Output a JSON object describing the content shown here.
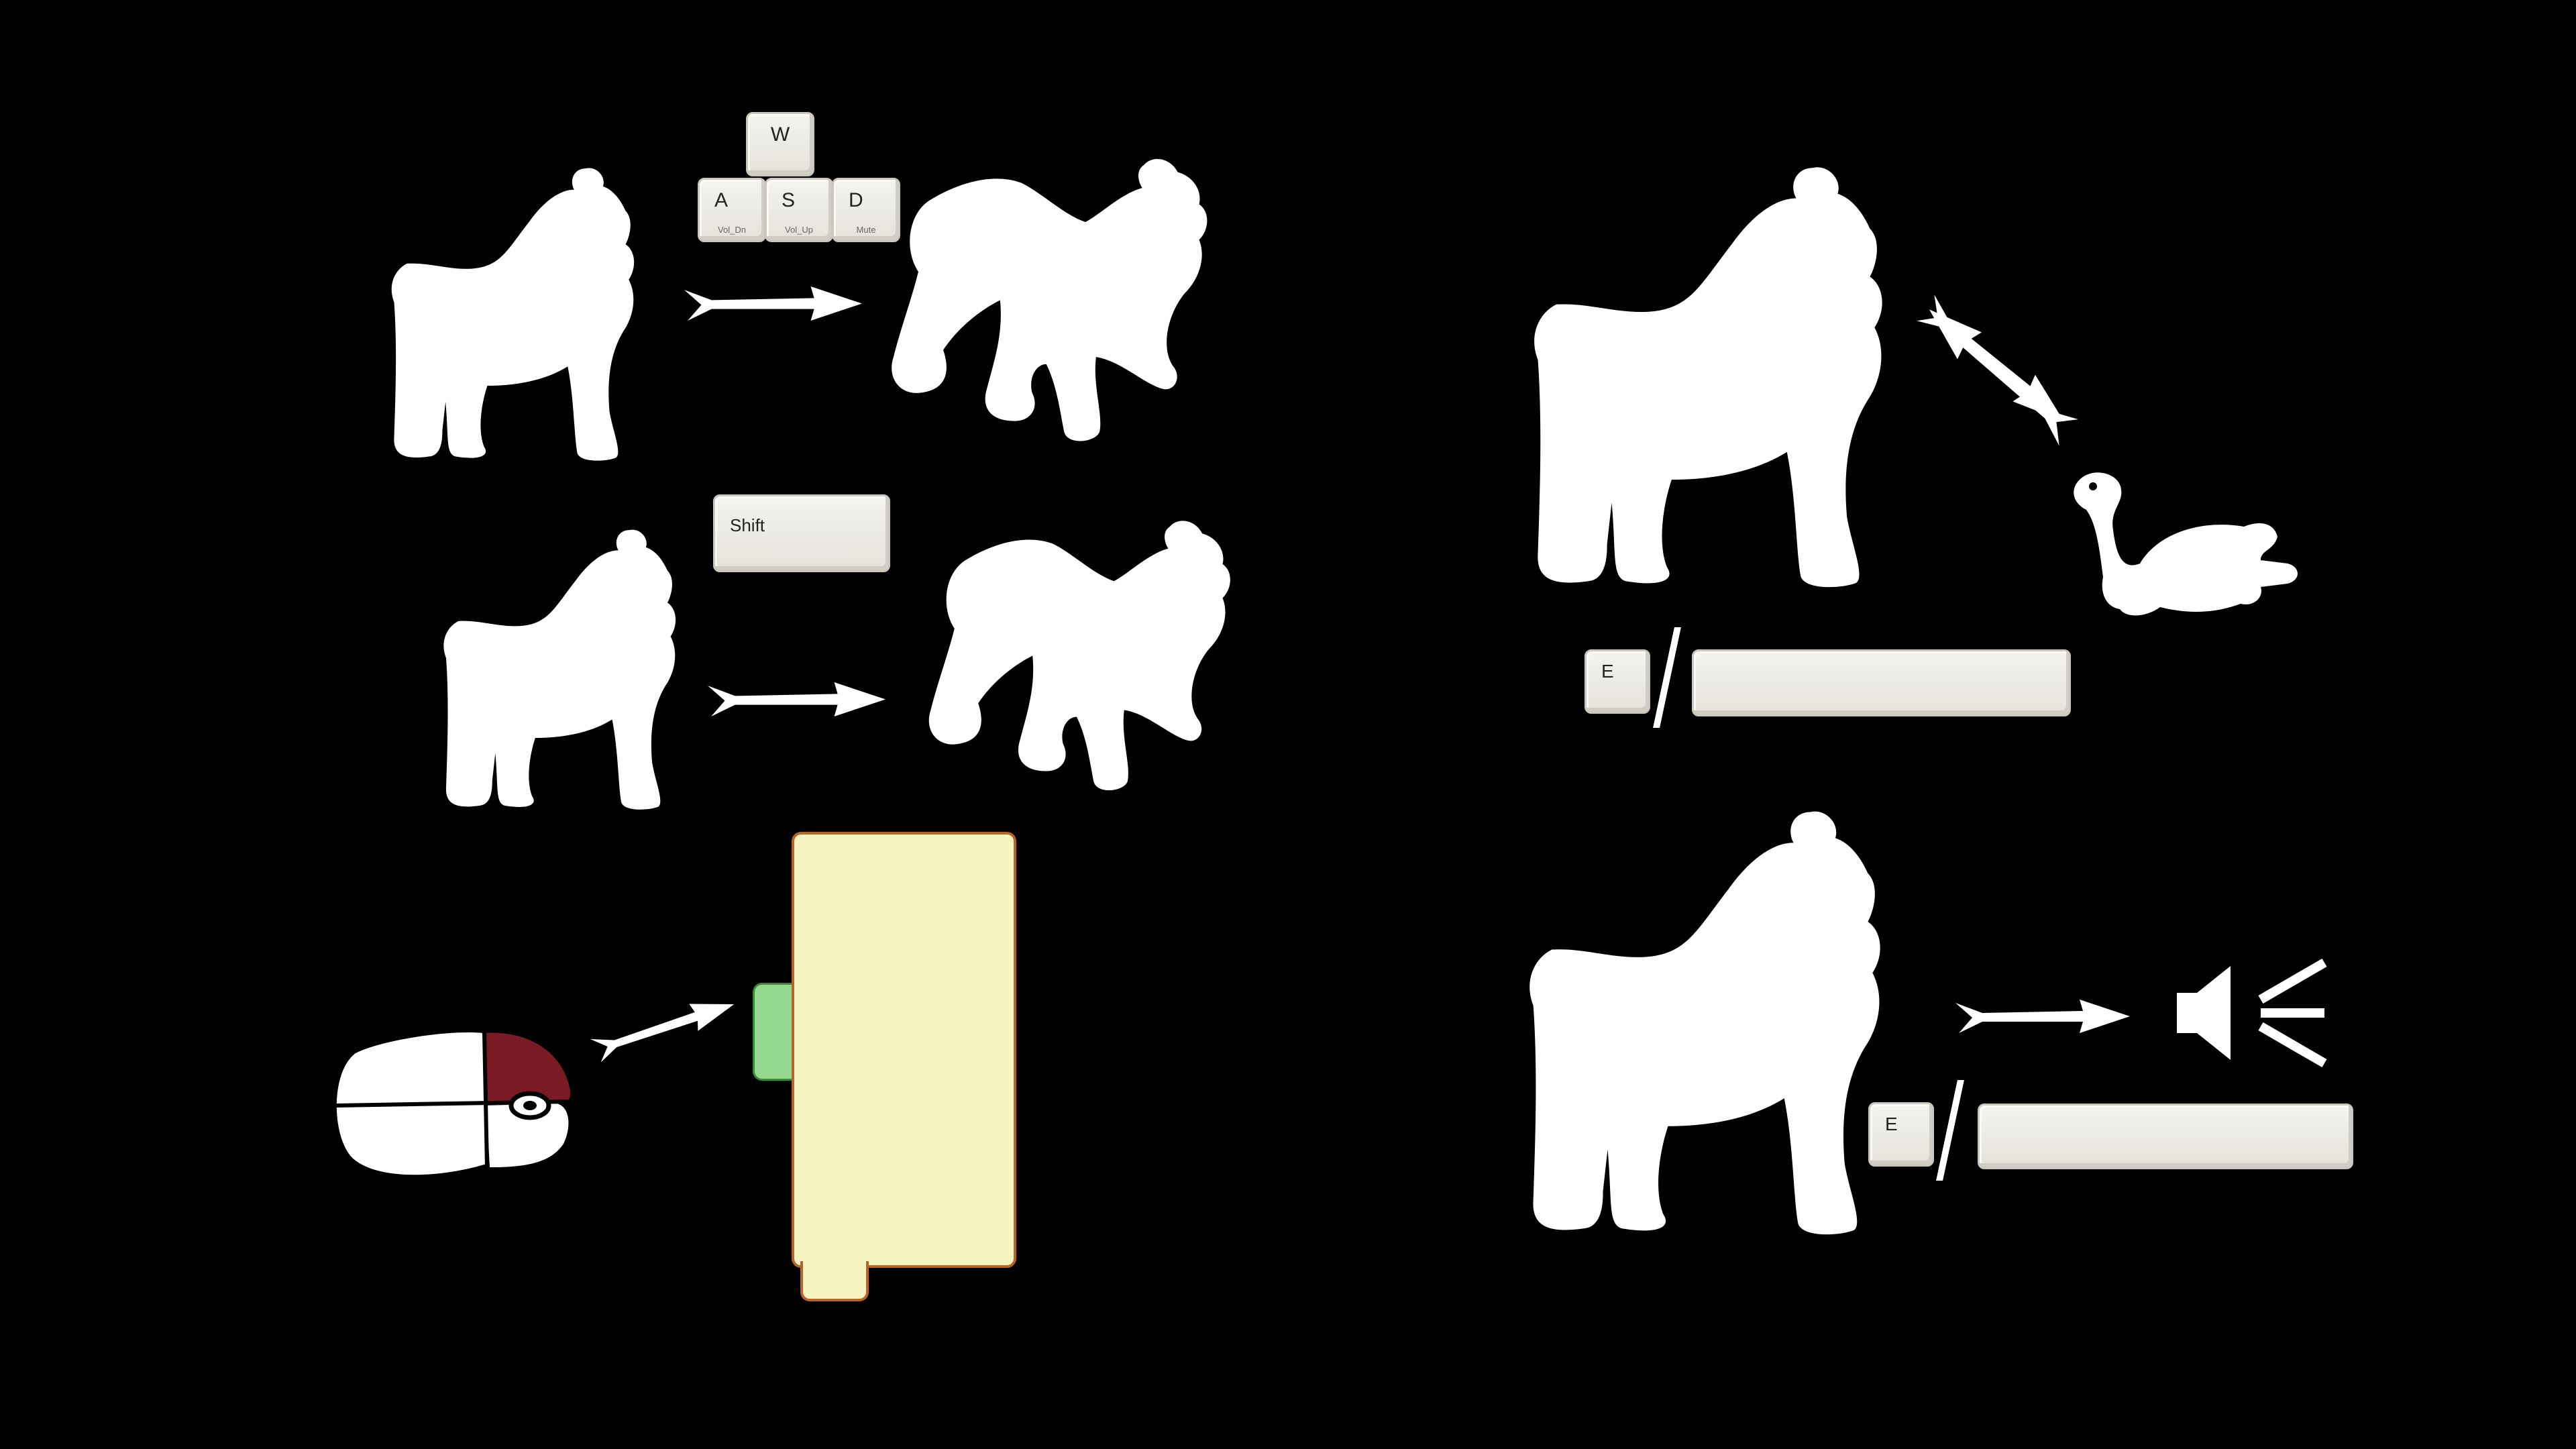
{
  "keys": {
    "w": {
      "label": "W"
    },
    "a": {
      "label": "A",
      "sub": "Vol_Dn"
    },
    "s": {
      "label": "S",
      "sub": "Vol_Up"
    },
    "d": {
      "label": "D",
      "sub": "Mute"
    },
    "shift": {
      "label": "Shift"
    },
    "e_howl": {
      "label": "E"
    },
    "e_call": {
      "label": "E"
    }
  },
  "colors": {
    "background": "#000000",
    "silhouette": "#ffffff",
    "mouse_button": "#7a1a25",
    "panel_fill": "#f8f4c2",
    "panel_border": "#b5652a",
    "panel_tab": "#95d990"
  },
  "icons": {
    "wolf": "wolf-silhouette-icon",
    "turtle": "turtle-icon",
    "arrow": "arrow-right-icon",
    "mouse": "mouse-icon",
    "speaker": "speaker-icon"
  }
}
